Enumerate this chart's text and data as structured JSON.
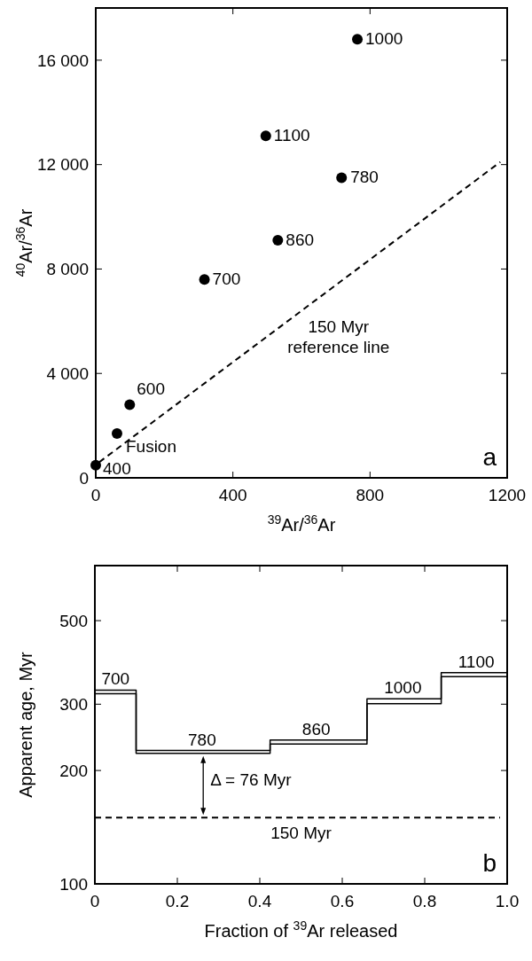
{
  "chart_data": [
    {
      "type": "scatter",
      "xlabel": "$^{39}$Ar/$^{36}$Ar",
      "ylabel": "$^{40}$Ar/$^{36}$Ar",
      "xlim": [
        0,
        1200
      ],
      "xticks": [
        0,
        400,
        800,
        1200
      ],
      "ylim": [
        0,
        18000
      ],
      "yticks": [
        0,
        {
          "value": 4000,
          "label": "4 000"
        },
        {
          "value": 8000,
          "label": "8 000"
        },
        {
          "value": 12000,
          "label": "12 000"
        },
        {
          "value": 16000,
          "label": "16 000"
        }
      ],
      "grid": false,
      "marker": "circle",
      "series": [
        {
          "color": "#000000",
          "x": [
            763,
            496,
            717,
            531,
            317,
            99,
            62,
            0
          ],
          "values": [
            16800,
            13100,
            11500,
            9100,
            7600,
            2800,
            1700,
            480
          ]
        },
        {
          "type": "line",
          "line_style": "dashed",
          "marker": "none",
          "color": "#000000",
          "x": [
            10,
            1180
          ],
          "values": [
            600,
            12100
          ]
        }
      ],
      "annotations": [
        {
          "text": "1000",
          "x": 763,
          "y": 16800
        },
        {
          "text": "1100",
          "x": 496,
          "y": 13100
        },
        {
          "text": "780",
          "x": 717,
          "y": 11500
        },
        {
          "text": "860",
          "x": 531,
          "y": 9100
        },
        {
          "text": "700",
          "x": 317,
          "y": 7600
        },
        {
          "text": "600",
          "x": 99,
          "y": 2800
        },
        {
          "text": "Fusion",
          "x": 62,
          "y": 1700
        },
        {
          "text": "400",
          "x": 0,
          "y": 480
        },
        "150 Myr reference line",
        "a"
      ]
    },
    {
      "type": "step",
      "xlabel": "Fraction of $^{39}$Ar released",
      "ylabel": "Apparent age, Myr",
      "xlim": [
        0,
        1.0
      ],
      "xticks": [
        {
          "value": 0,
          "label": "0"
        },
        0.2,
        0.4,
        0.6,
        0.8,
        {
          "value": 1.0,
          "label": "1.0"
        }
      ],
      "ylim": [
        100,
        700
      ],
      "yticks": [
        100,
        200,
        300,
        500
      ],
      "log": "y",
      "grid": false,
      "marker": "none",
      "series": [
        {
          "color": "#000000",
          "line_style": "solid",
          "x": [
            0,
            0.1,
            0.425,
            0.66,
            0.84,
            1.0
          ],
          "values": [
            327,
            226,
            241,
            310,
            364,
            364
          ]
        },
        {
          "color": "#000000",
          "line_style": "solid",
          "x": [
            0,
            0.1,
            0.425,
            0.66,
            0.84,
            1.0
          ],
          "values": [
            320,
            222,
            235,
            301,
            355,
            355
          ]
        }
      ],
      "ref_lines": [
        {
          "axis": "y",
          "value": 150,
          "label": "150 Myr",
          "line_style": "dashed",
          "color": "#000000"
        }
      ],
      "annotations": [
        {
          "text": "700",
          "x": 0.05,
          "y": 327
        },
        {
          "text": "780",
          "x": 0.26,
          "y": 226
        },
        {
          "text": "860",
          "x": 0.537,
          "y": 241
        },
        {
          "text": "1000",
          "x": 0.747,
          "y": 310
        },
        {
          "text": "1100",
          "x": 0.925,
          "y": 364
        },
        "Δ = 76 Myr",
        "b"
      ]
    }
  ]
}
